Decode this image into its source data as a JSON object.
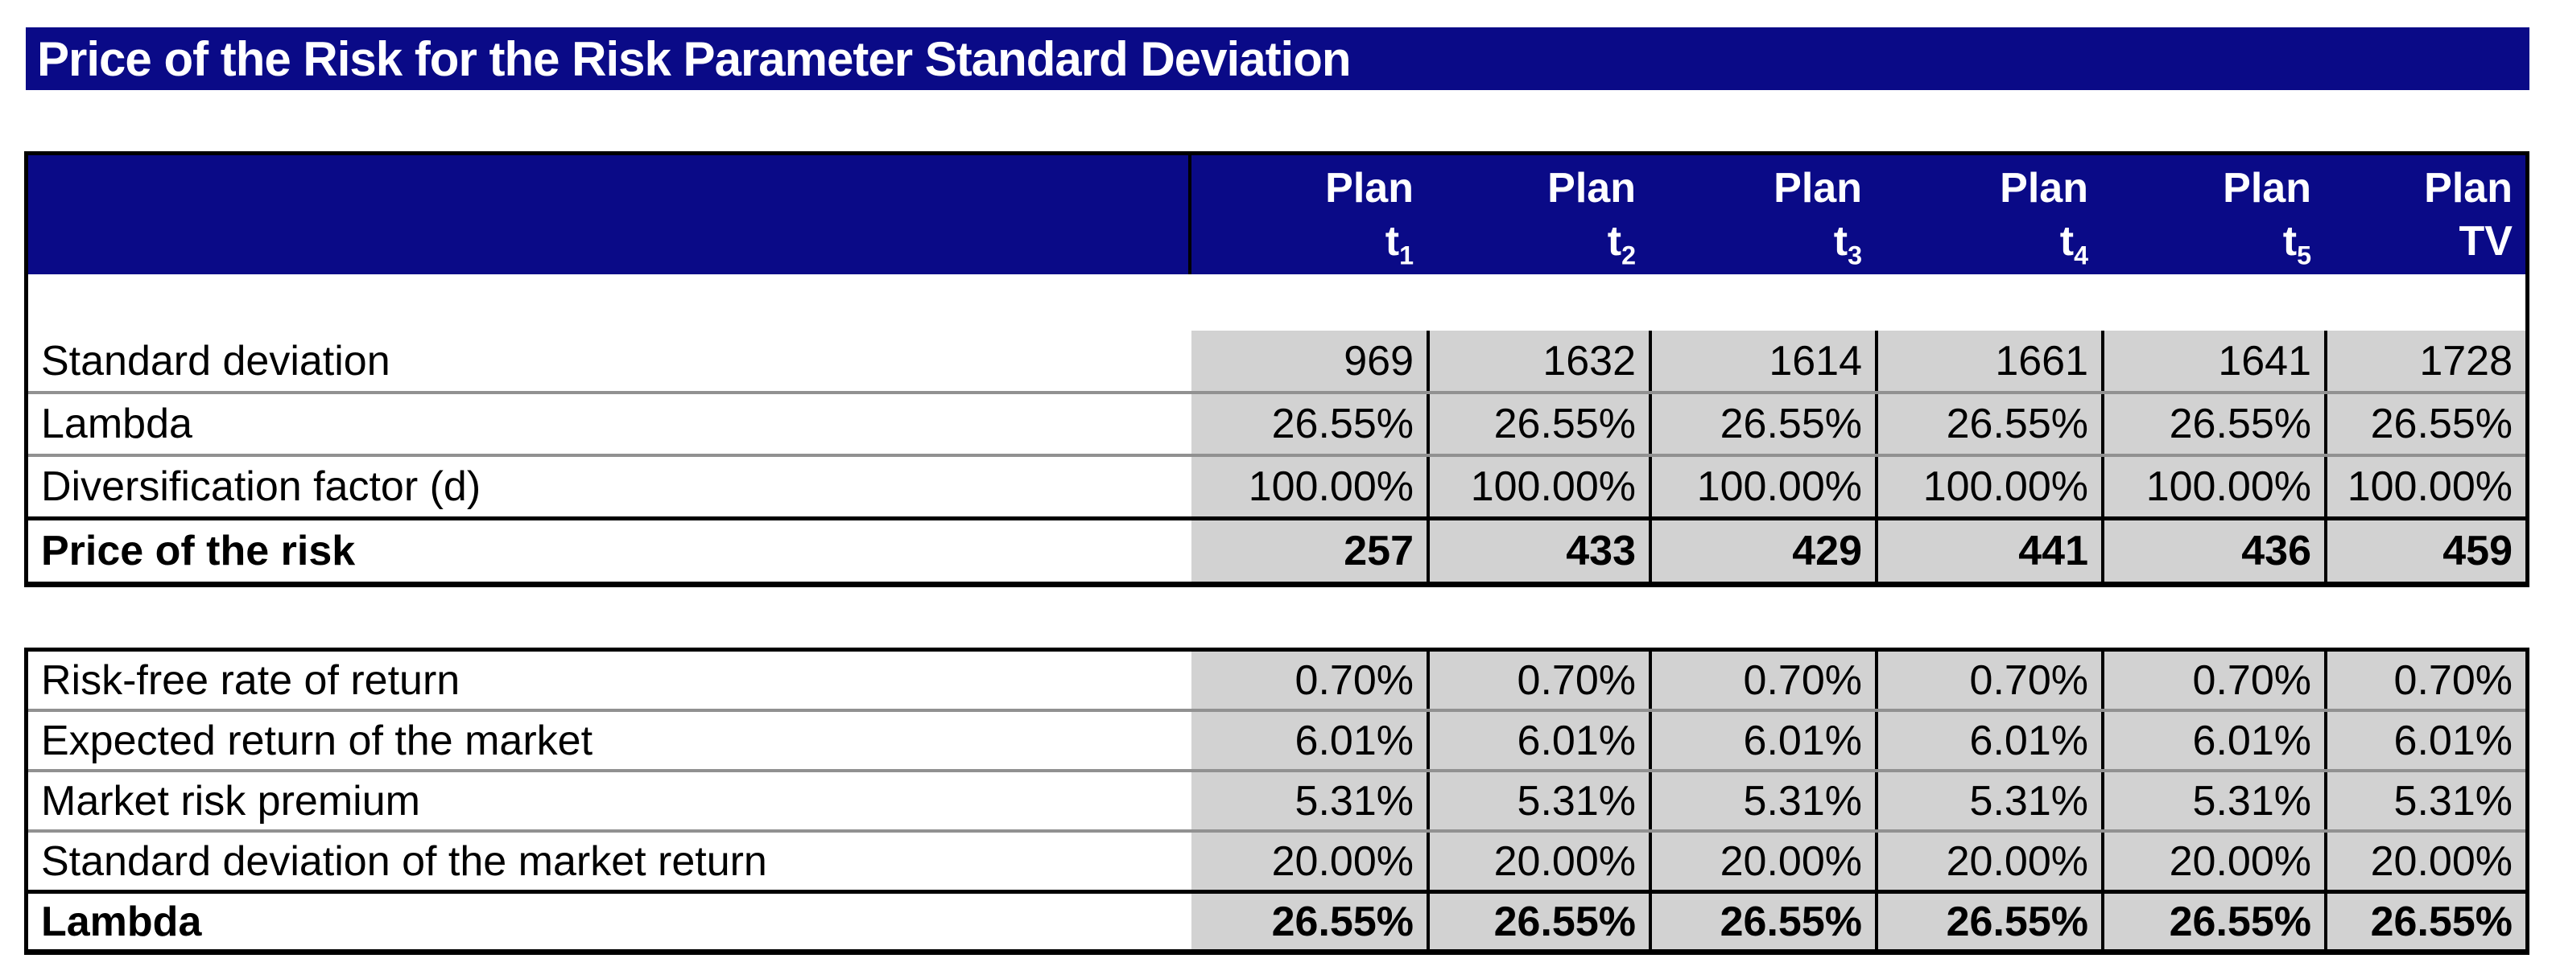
{
  "colors": {
    "navy": "#0a0a87",
    "cell_gray": "#d2d2d2"
  },
  "title": "Price of the Risk for the Risk Parameter Standard Deviation",
  "header": {
    "cols": [
      {
        "top": "Plan",
        "base": "t",
        "sub": "1"
      },
      {
        "top": "Plan",
        "base": "t",
        "sub": "2"
      },
      {
        "top": "Plan",
        "base": "t",
        "sub": "3"
      },
      {
        "top": "Plan",
        "base": "t",
        "sub": "4"
      },
      {
        "top": "Plan",
        "base": "t",
        "sub": "5"
      },
      {
        "top": "Plan",
        "base": "TV",
        "sub": ""
      }
    ]
  },
  "table1": {
    "rows": [
      {
        "label": "Standard deviation",
        "values": [
          "969",
          "1632",
          "1614",
          "1661",
          "1641",
          "1728"
        ]
      },
      {
        "label": "Lambda",
        "values": [
          "26.55%",
          "26.55%",
          "26.55%",
          "26.55%",
          "26.55%",
          "26.55%"
        ]
      },
      {
        "label": "Diversification factor (d)",
        "values": [
          "100.00%",
          "100.00%",
          "100.00%",
          "100.00%",
          "100.00%",
          "100.00%"
        ]
      },
      {
        "label": "Price of the risk",
        "values": [
          "257",
          "433",
          "429",
          "441",
          "436",
          "459"
        ]
      }
    ]
  },
  "table2": {
    "rows": [
      {
        "label": "Risk-free rate of return",
        "values": [
          "0.70%",
          "0.70%",
          "0.70%",
          "0.70%",
          "0.70%",
          "0.70%"
        ]
      },
      {
        "label": "Expected return of the market",
        "values": [
          "6.01%",
          "6.01%",
          "6.01%",
          "6.01%",
          "6.01%",
          "6.01%"
        ]
      },
      {
        "label": "Market risk premium",
        "values": [
          "5.31%",
          "5.31%",
          "5.31%",
          "5.31%",
          "5.31%",
          "5.31%"
        ]
      },
      {
        "label": "Standard deviation of the market return",
        "values": [
          "20.00%",
          "20.00%",
          "20.00%",
          "20.00%",
          "20.00%",
          "20.00%"
        ]
      },
      {
        "label": "Lambda",
        "values": [
          "26.55%",
          "26.55%",
          "26.55%",
          "26.55%",
          "26.55%",
          "26.55%"
        ]
      }
    ]
  }
}
